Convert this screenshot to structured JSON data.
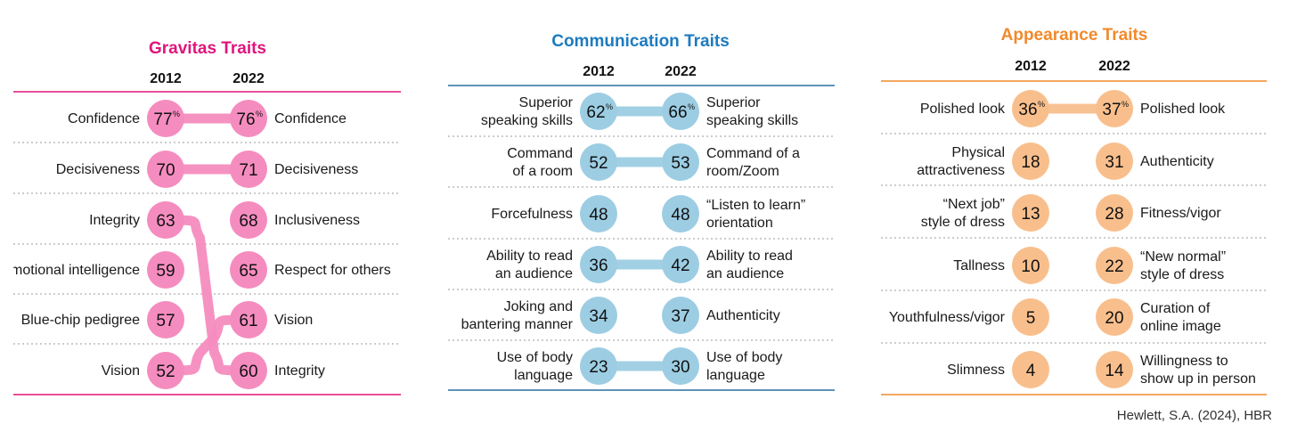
{
  "source": "Hewlett, S.A. (2024), HBR",
  "chart_data": [
    {
      "type": "slope",
      "title": "Gravitas Traits",
      "color": "#e0157d",
      "bubble_fill": "#f58cbf",
      "connector": "#f58cbf",
      "line_color": "#e0157d",
      "years": [
        "2012",
        "2022"
      ],
      "left": [
        {
          "label": [
            "Confidence"
          ],
          "value": "77",
          "pct": true
        },
        {
          "label": [
            "Decisiveness"
          ],
          "value": "70"
        },
        {
          "label": [
            "Integrity"
          ],
          "value": "63"
        },
        {
          "label": [
            "Emotional intelligence"
          ],
          "value": "59"
        },
        {
          "label": [
            "Blue-chip pedigree"
          ],
          "value": "57"
        },
        {
          "label": [
            "Vision"
          ],
          "value": "52"
        }
      ],
      "right": [
        {
          "label": [
            "Confidence"
          ],
          "value": "76",
          "pct": true
        },
        {
          "label": [
            "Decisiveness"
          ],
          "value": "71"
        },
        {
          "label": [
            "Inclusiveness"
          ],
          "value": "68"
        },
        {
          "label": [
            "Respect for others"
          ],
          "value": "65"
        },
        {
          "label": [
            "Vision"
          ],
          "value": "61"
        },
        {
          "label": [
            "Integrity"
          ],
          "value": "60"
        }
      ],
      "links": [
        [
          0,
          0
        ],
        [
          1,
          1
        ],
        [
          2,
          5
        ],
        [
          5,
          4
        ]
      ]
    },
    {
      "type": "slope",
      "title": "Communication Traits",
      "color": "#1d7bbf",
      "bubble_fill": "#9ccde3",
      "connector": "#9ccde3",
      "line_color": "#2a6f9e",
      "years": [
        "2012",
        "2022"
      ],
      "left": [
        {
          "label": [
            "Superior",
            "speaking skills"
          ],
          "value": "62",
          "pct": true
        },
        {
          "label": [
            "Command",
            "of a room"
          ],
          "value": "52"
        },
        {
          "label": [
            "Forcefulness"
          ],
          "value": "48"
        },
        {
          "label": [
            "Ability to read",
            "an audience"
          ],
          "value": "36"
        },
        {
          "label": [
            "Joking and",
            "bantering manner"
          ],
          "value": "34"
        },
        {
          "label": [
            "Use of body",
            "language"
          ],
          "value": "23"
        }
      ],
      "right": [
        {
          "label": [
            "Superior",
            "speaking skills"
          ],
          "value": "66",
          "pct": true
        },
        {
          "label": [
            "Command of a",
            "room/Zoom"
          ],
          "value": "53"
        },
        {
          "label": [
            "“Listen to learn”",
            "orientation"
          ],
          "value": "48"
        },
        {
          "label": [
            "Ability to read",
            "an audience"
          ],
          "value": "42"
        },
        {
          "label": [
            "Authenticity"
          ],
          "value": "37"
        },
        {
          "label": [
            "Use of body",
            "language"
          ],
          "value": "30"
        }
      ],
      "links": [
        [
          0,
          0
        ],
        [
          1,
          1
        ],
        [
          3,
          3
        ],
        [
          5,
          5
        ]
      ]
    },
    {
      "type": "slope",
      "title": "Appearance Traits",
      "color": "#f08a2c",
      "bubble_fill": "#f8bf8d",
      "connector": "#f8bf8d",
      "line_color": "#f08a2c",
      "years": [
        "2012",
        "2022"
      ],
      "left": [
        {
          "label": [
            "Polished look"
          ],
          "value": "36",
          "pct": true
        },
        {
          "label": [
            "Physical",
            "attractiveness"
          ],
          "value": "18"
        },
        {
          "label": [
            "“Next job”",
            "style of dress"
          ],
          "value": "13"
        },
        {
          "label": [
            "Tallness"
          ],
          "value": "10"
        },
        {
          "label": [
            "Youthfulness/vigor"
          ],
          "value": "5"
        },
        {
          "label": [
            "Slimness"
          ],
          "value": "4"
        }
      ],
      "right": [
        {
          "label": [
            "Polished look"
          ],
          "value": "37",
          "pct": true
        },
        {
          "label": [
            "Authenticity"
          ],
          "value": "31"
        },
        {
          "label": [
            "Fitness/vigor"
          ],
          "value": "28"
        },
        {
          "label": [
            "“New normal”",
            "style of dress"
          ],
          "value": "22"
        },
        {
          "label": [
            "Curation of",
            "online image"
          ],
          "value": "20"
        },
        {
          "label": [
            "Willingness to",
            "show up in person"
          ],
          "value": "14"
        }
      ],
      "links": [
        [
          0,
          0
        ]
      ]
    }
  ]
}
